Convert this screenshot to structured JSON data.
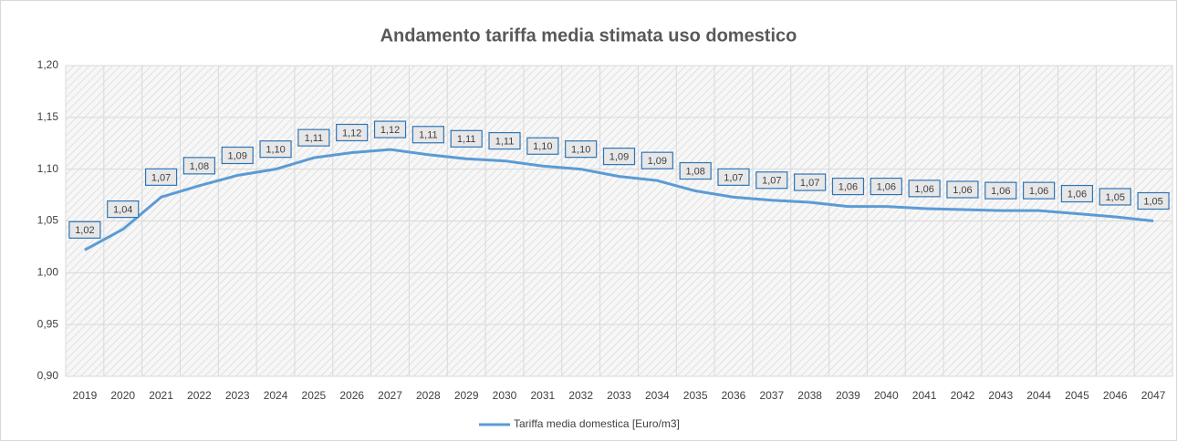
{
  "chart_data": {
    "type": "line",
    "title": "Andamento tariffa media stimata uso domestico",
    "categories": [
      "2019",
      "2020",
      "2021",
      "2022",
      "2023",
      "2024",
      "2025",
      "2026",
      "2027",
      "2028",
      "2029",
      "2030",
      "2031",
      "2032",
      "2033",
      "2034",
      "2035",
      "2036",
      "2037",
      "2038",
      "2039",
      "2040",
      "2041",
      "2042",
      "2043",
      "2044",
      "2045",
      "2046",
      "2047"
    ],
    "series": [
      {
        "name": "Tariffa media domestica [Euro/m3]",
        "color": "#5b9bd5",
        "values": [
          1.022,
          1.042,
          1.073,
          1.084,
          1.094,
          1.1,
          1.111,
          1.116,
          1.119,
          1.114,
          1.11,
          1.108,
          1.103,
          1.1,
          1.093,
          1.089,
          1.079,
          1.073,
          1.07,
          1.068,
          1.064,
          1.064,
          1.062,
          1.061,
          1.06,
          1.06,
          1.057,
          1.054,
          1.05
        ],
        "value_labels": [
          "1,02",
          "1,04",
          "1,07",
          "1,08",
          "1,09",
          "1,10",
          "1,11",
          "1,12",
          "1,12",
          "1,11",
          "1,11",
          "1,11",
          "1,10",
          "1,10",
          "1,09",
          "1,09",
          "1,08",
          "1,07",
          "1,07",
          "1,07",
          "1,06",
          "1,06",
          "1,06",
          "1,06",
          "1,06",
          "1,06",
          "1,06",
          "1,05",
          "1,05"
        ]
      }
    ],
    "ylim": [
      0.9,
      1.2
    ],
    "yticks": [
      {
        "value": 0.9,
        "label": "0,90"
      },
      {
        "value": 0.95,
        "label": "0,95"
      },
      {
        "value": 1.0,
        "label": "1,00"
      },
      {
        "value": 1.05,
        "label": "1,05"
      },
      {
        "value": 1.1,
        "label": "1,10"
      },
      {
        "value": 1.15,
        "label": "1,15"
      },
      {
        "value": 1.2,
        "label": "1,20"
      }
    ],
    "grid": true,
    "legend": "bottom"
  }
}
